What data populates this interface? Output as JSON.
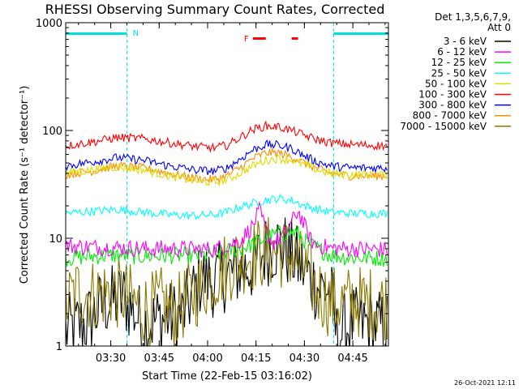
{
  "chart_data": {
    "type": "line",
    "title": "RHESSI Observing Summary Count Rates, Corrected",
    "xlabel": "Start Time (22-Feb-15 03:16:02)",
    "ylabel": "Corrected Count Rate (s⁻¹ detector⁻¹)",
    "yscale": "log",
    "ylim": [
      1,
      1000
    ],
    "xlim_minutes": [
      0,
      100
    ],
    "x_ticks": [
      "03:30",
      "03:45",
      "04:00",
      "04:15",
      "04:30",
      "04:45"
    ],
    "y_ticks": [
      "1",
      "10",
      "100",
      "1000"
    ],
    "footer_date": "26-Oct-2021 12:11",
    "legend_header": [
      "Det 1,3,5,6,7,9,",
      "Att 0"
    ],
    "legend_position": "right",
    "night_bars": {
      "label": "N",
      "color": "#00e0e0",
      "spans": [
        [
          0,
          19
        ],
        [
          83,
          100
        ]
      ]
    },
    "flare_flags": {
      "label": "F",
      "color": "#ff0000",
      "spans": [
        [
          58,
          62
        ],
        [
          70,
          72
        ]
      ]
    },
    "series": [
      {
        "name": "3 - 6 keV",
        "color": "#000000",
        "x": [
          0,
          6,
          12,
          18,
          24,
          30,
          36,
          42,
          46,
          50,
          54,
          58,
          62,
          66,
          70,
          74,
          78,
          82,
          84,
          88,
          94,
          100
        ],
        "values": [
          1.4,
          1.6,
          2.5,
          2.8,
          1.6,
          1.8,
          1.9,
          4.3,
          4.0,
          4.6,
          5.1,
          5.5,
          7.7,
          8.8,
          7.0,
          5.0,
          3.5,
          3.3,
          1.2,
          1.6,
          1.6,
          1.5
        ]
      },
      {
        "name": "6 - 12 keV",
        "color": "#ff00ff",
        "x": [
          0,
          8,
          16,
          24,
          32,
          40,
          46,
          50,
          54,
          58,
          60,
          62,
          64,
          66,
          68,
          70,
          72,
          74,
          76,
          78,
          82,
          88,
          94,
          100
        ],
        "values": [
          8.5,
          8.3,
          8.2,
          8.0,
          8.0,
          7.9,
          7.9,
          8.6,
          9.5,
          13.0,
          18.0,
          12.0,
          9.0,
          10.0,
          11.0,
          14.0,
          18.0,
          13.0,
          9.5,
          8.6,
          8.1,
          8.0,
          7.9,
          7.8
        ]
      },
      {
        "name": "12 - 25 keV",
        "color": "#00ee00",
        "x": [
          0,
          8,
          16,
          24,
          32,
          40,
          46,
          50,
          54,
          58,
          62,
          66,
          70,
          72,
          74,
          78,
          82,
          88,
          94,
          100
        ],
        "values": [
          6.5,
          6.8,
          7.0,
          6.8,
          6.9,
          6.9,
          7.0,
          7.6,
          8.0,
          8.8,
          10.0,
          11.0,
          11.5,
          11.0,
          9.5,
          8.0,
          7.0,
          6.6,
          6.6,
          6.5
        ]
      },
      {
        "name": "25 - 50 keV",
        "color": "#00ffff",
        "x": [
          0,
          8,
          16,
          24,
          32,
          40,
          46,
          50,
          54,
          58,
          62,
          66,
          70,
          74,
          78,
          82,
          88,
          94,
          100
        ],
        "values": [
          17.0,
          17.8,
          18.5,
          17.5,
          16.5,
          16.2,
          16.5,
          17.5,
          19.5,
          21.0,
          22.5,
          23.5,
          22.5,
          20.0,
          18.5,
          17.5,
          17.0,
          17.0,
          17.0
        ]
      },
      {
        "name": "50 - 100 keV",
        "color": "#dddd00",
        "x": [
          0,
          8,
          16,
          24,
          32,
          40,
          46,
          50,
          54,
          58,
          62,
          66,
          70,
          74,
          78,
          82,
          88,
          94,
          100
        ],
        "values": [
          40.0,
          43.0,
          46.0,
          43.0,
          38.0,
          34.0,
          33.0,
          35.0,
          40.0,
          47.0,
          53.0,
          55.0,
          53.0,
          48.0,
          43.0,
          40.0,
          39.0,
          39.0,
          39.0
        ]
      },
      {
        "name": "100 - 300 keV",
        "color": "#ff0000",
        "x": [
          0,
          8,
          16,
          24,
          32,
          40,
          46,
          50,
          54,
          58,
          62,
          66,
          70,
          74,
          78,
          82,
          88,
          94,
          100
        ],
        "values": [
          72.0,
          78.0,
          86.0,
          84.0,
          77.0,
          71.0,
          69.0,
          73.0,
          86.0,
          102.0,
          110.0,
          108.0,
          100.0,
          90.0,
          82.0,
          77.0,
          74.0,
          73.0,
          72.0
        ]
      },
      {
        "name": "300 - 800 keV",
        "color": "#0000ff",
        "x": [
          0,
          8,
          16,
          24,
          32,
          40,
          46,
          50,
          54,
          58,
          62,
          66,
          70,
          74,
          78,
          82,
          88,
          94,
          100
        ],
        "values": [
          47.0,
          51.0,
          56.0,
          53.0,
          47.0,
          43.0,
          42.0,
          45.0,
          54.0,
          66.0,
          74.0,
          73.0,
          68.0,
          58.0,
          51.0,
          47.0,
          45.0,
          45.0,
          45.0
        ]
      },
      {
        "name": "800 - 7000 keV",
        "color": "#ff8c00",
        "x": [
          0,
          8,
          16,
          24,
          32,
          40,
          46,
          50,
          54,
          58,
          62,
          66,
          70,
          74,
          78,
          82,
          88,
          94,
          100
        ],
        "values": [
          39.0,
          42.0,
          47.0,
          45.0,
          40.0,
          36.0,
          35.0,
          38.0,
          45.0,
          55.0,
          62.0,
          62.0,
          57.0,
          50.0,
          44.0,
          40.0,
          38.0,
          38.0,
          38.0
        ]
      },
      {
        "name": "7000 - 15000 keV",
        "color": "#8b7a00",
        "x": [
          0,
          4,
          8,
          14,
          18,
          22,
          26,
          30,
          34,
          38,
          42,
          46,
          50,
          54,
          58,
          62,
          66,
          70,
          74,
          78,
          82,
          84,
          90,
          96,
          100
        ],
        "values": [
          2.5,
          3.3,
          3.0,
          3.2,
          3.0,
          2.4,
          2.2,
          2.5,
          2.0,
          2.8,
          3.5,
          4.5,
          5.5,
          6.5,
          7.0,
          7.5,
          7.5,
          7.0,
          5.0,
          3.3,
          2.6,
          2.5,
          2.6,
          2.5,
          2.5
        ]
      }
    ]
  }
}
